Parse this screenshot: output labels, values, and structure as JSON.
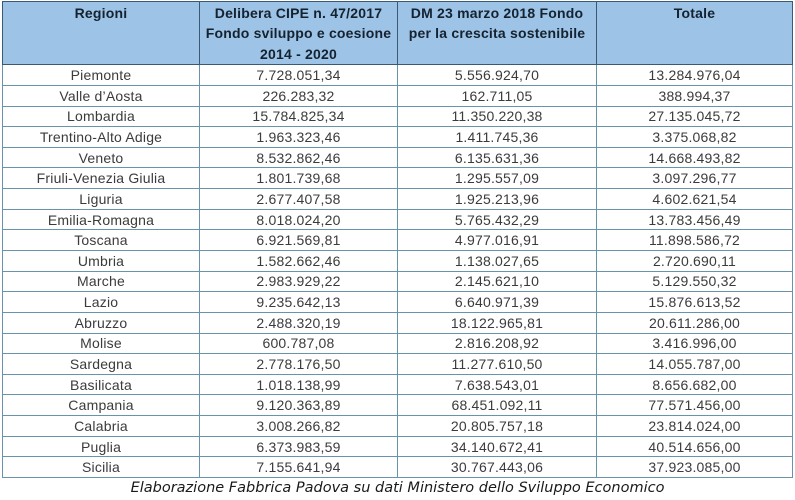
{
  "chart_data": {
    "type": "table",
    "title": "",
    "columns": [
      {
        "label": "Regioni",
        "lines": [
          "Regioni"
        ]
      },
      {
        "label": "Delibera CIPE n. 47/2017 Fondo sviluppo e coesione 2014 - 2020",
        "lines": [
          "Delibera CIPE n. 47/2017",
          "Fondo sviluppo e coesione",
          "2014 - 2020"
        ]
      },
      {
        "label": "DM 23 marzo 2018 Fondo per la crescita sostenibile",
        "lines": [
          "DM 23 marzo 2018 Fondo",
          "per la crescita sostenibile"
        ]
      },
      {
        "label": "Totale",
        "lines": [
          "Totale"
        ]
      }
    ],
    "rows": [
      [
        "Piemonte",
        "7.728.051,34",
        "5.556.924,70",
        "13.284.976,04"
      ],
      [
        "Valle d’Aosta",
        "226.283,32",
        "162.711,05",
        "388.994,37"
      ],
      [
        "Lombardia",
        "15.784.825,34",
        "11.350.220,38",
        "27.135.045,72"
      ],
      [
        "Trentino-Alto Adige",
        "1.963.323,46",
        "1.411.745,36",
        "3.375.068,82"
      ],
      [
        "Veneto",
        "8.532.862,46",
        "6.135.631,36",
        "14.668.493,82"
      ],
      [
        "Friuli-Venezia Giulia",
        "1.801.739,68",
        "1.295.557,09",
        "3.097.296,77"
      ],
      [
        "Liguria",
        "2.677.407,58",
        "1.925.213,96",
        "4.602.621,54"
      ],
      [
        "Emilia-Romagna",
        "8.018.024,20",
        "5.765.432,29",
        "13.783.456,49"
      ],
      [
        "Toscana",
        "6.921.569,81",
        "4.977.016,91",
        "11.898.586,72"
      ],
      [
        "Umbria",
        "1.582.662,46",
        "1.138.027,65",
        "2.720.690,11"
      ],
      [
        "Marche",
        "2.983.929,22",
        "2.145.621,10",
        "5.129.550,32"
      ],
      [
        "Lazio",
        "9.235.642,13",
        "6.640.971,39",
        "15.876.613,52"
      ],
      [
        "Abruzzo",
        "2.488.320,19",
        "18.122.965,81",
        "20.611.286,00"
      ],
      [
        "Molise",
        "600.787,08",
        "2.816.208,92",
        "3.416.996,00"
      ],
      [
        "Sardegna",
        "2.778.176,50",
        "11.277.610,50",
        "14.055.787,00"
      ],
      [
        "Basilicata",
        "1.018.138,99",
        "7.638.543,01",
        "8.656.682,00"
      ],
      [
        "Campania",
        "9.120.363,89",
        "68.451.092,11",
        "77.571.456,00"
      ],
      [
        "Calabria",
        "3.008.266,82",
        "20.805.757,18",
        "23.814.024,00"
      ],
      [
        "Puglia",
        "6.373.983,59",
        "34.140.672,41",
        "40.514.656,00"
      ],
      [
        "Sicilia",
        "7.155.641,94",
        "30.767.443,06",
        "37.923.085,00"
      ]
    ],
    "caption": "Elaborazione Fabbrica Padova su dati Ministero dello Sviluppo Economico"
  },
  "colors": {
    "header_fill": "#9dc3e6",
    "border": "#6992ab",
    "header_border": "#3a5a73",
    "header_text": "#15222f",
    "body_text": "#3b3b3b",
    "background": "#ffffff"
  }
}
